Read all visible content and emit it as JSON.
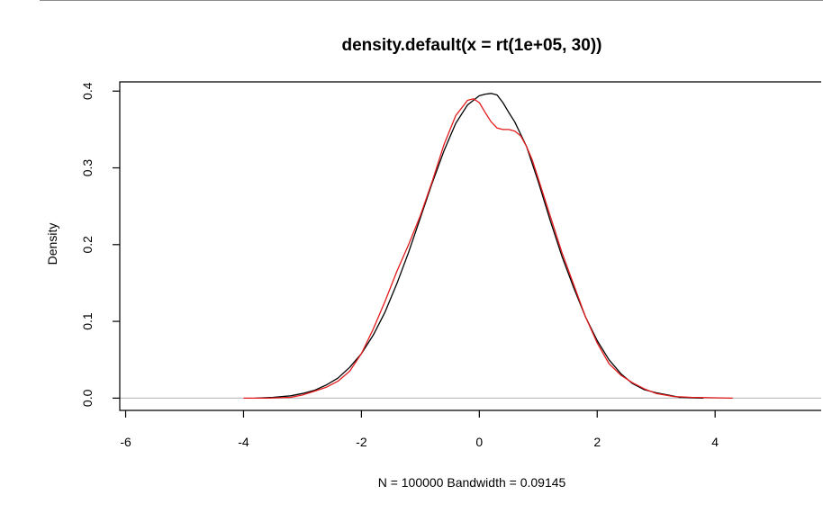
{
  "chart_data": {
    "type": "line",
    "title": "density.default(x = rt(1e+05, 30))",
    "xlabel": "N = 100000   Bandwidth = 0.09145",
    "ylabel": "Density",
    "xlim": [
      -6.1,
      5.8
    ],
    "ylim": [
      -0.016,
      0.412
    ],
    "x_ticks": [
      -6,
      -4,
      -2,
      0,
      2,
      4
    ],
    "x_tick_labels": [
      "-6",
      "-4",
      "-2",
      "0",
      "2",
      "4"
    ],
    "y_ticks": [
      0.0,
      0.1,
      0.2,
      0.3,
      0.4
    ],
    "y_tick_labels": [
      "0.0",
      "0.1",
      "0.2",
      "0.3",
      "0.4"
    ],
    "baseline": {
      "y": 0,
      "color": "#c0c0c0"
    },
    "grid": false,
    "legend": "none",
    "series": [
      {
        "color": "#000000",
        "x": [
          -3.8,
          -3.5,
          -3.2,
          -3.0,
          -2.8,
          -2.6,
          -2.4,
          -2.2,
          -2.0,
          -1.8,
          -1.6,
          -1.4,
          -1.2,
          -1.0,
          -0.8,
          -0.6,
          -0.4,
          -0.2,
          0.0,
          0.1,
          0.2,
          0.3,
          0.4,
          0.5,
          0.6,
          0.8,
          1.0,
          1.2,
          1.4,
          1.6,
          1.8,
          2.0,
          2.2,
          2.4,
          2.6,
          2.8,
          3.0,
          3.2,
          3.4,
          3.8
        ],
        "values": [
          0.0,
          0.001,
          0.003,
          0.006,
          0.01,
          0.017,
          0.026,
          0.04,
          0.058,
          0.082,
          0.112,
          0.149,
          0.19,
          0.235,
          0.28,
          0.322,
          0.358,
          0.382,
          0.394,
          0.396,
          0.397,
          0.395,
          0.385,
          0.372,
          0.36,
          0.328,
          0.282,
          0.232,
          0.185,
          0.144,
          0.106,
          0.075,
          0.05,
          0.032,
          0.019,
          0.011,
          0.007,
          0.004,
          0.001,
          0.0
        ]
      },
      {
        "color": "#e31a1c",
        "x": [
          -4.0,
          -3.6,
          -3.2,
          -3.0,
          -2.8,
          -2.6,
          -2.4,
          -2.2,
          -2.0,
          -1.8,
          -1.6,
          -1.4,
          -1.2,
          -1.0,
          -0.8,
          -0.6,
          -0.4,
          -0.2,
          -0.1,
          0.0,
          0.1,
          0.2,
          0.3,
          0.4,
          0.5,
          0.6,
          0.7,
          0.8,
          0.9,
          1.0,
          1.2,
          1.4,
          1.6,
          1.8,
          2.0,
          2.2,
          2.4,
          2.6,
          2.8,
          3.0,
          3.3,
          3.6,
          4.3
        ],
        "values": [
          0.0,
          0.0,
          0.001,
          0.004,
          0.009,
          0.014,
          0.022,
          0.035,
          0.058,
          0.09,
          0.126,
          0.165,
          0.2,
          0.238,
          0.282,
          0.33,
          0.368,
          0.388,
          0.39,
          0.385,
          0.372,
          0.36,
          0.352,
          0.35,
          0.35,
          0.348,
          0.342,
          0.328,
          0.31,
          0.286,
          0.238,
          0.19,
          0.148,
          0.106,
          0.072,
          0.045,
          0.03,
          0.02,
          0.012,
          0.006,
          0.002,
          0.001,
          0.0
        ]
      }
    ]
  }
}
